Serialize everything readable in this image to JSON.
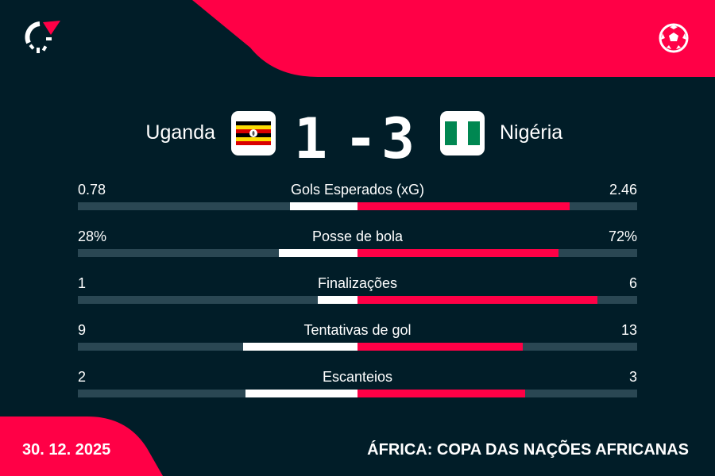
{
  "colors": {
    "background": "#011d28",
    "accent": "#ff0046",
    "track": "#2a4753",
    "home_bar": "#ffffff",
    "away_bar": "#ff0046"
  },
  "header": {
    "logo_icon": "flashscore-logo-icon",
    "sport_icon": "soccer-ball-icon"
  },
  "match": {
    "home_team": "Uganda",
    "away_team": "Nigéria",
    "home_score": "1",
    "separator": "-",
    "away_score": "3",
    "home_flag": "uganda-flag-icon",
    "away_flag": "nigeria-flag-icon"
  },
  "stats": [
    {
      "label": "Gols Esperados (xG)",
      "home": "0.78",
      "away": "2.46",
      "home_value": 0.78,
      "away_value": 2.46
    },
    {
      "label": "Posse de bola",
      "home": "28%",
      "away": "72%",
      "home_value": 28,
      "away_value": 72
    },
    {
      "label": "Finalizações",
      "home": "1",
      "away": "6",
      "home_value": 1,
      "away_value": 6
    },
    {
      "label": "Tentativas de gol",
      "home": "9",
      "away": "13",
      "home_value": 9,
      "away_value": 13
    },
    {
      "label": "Escanteios",
      "home": "2",
      "away": "3",
      "home_value": 2,
      "away_value": 3
    }
  ],
  "footer": {
    "date": "30. 12. 2025",
    "competition": "ÁFRICA: COPA DAS NAÇÕES AFRICANAS"
  }
}
